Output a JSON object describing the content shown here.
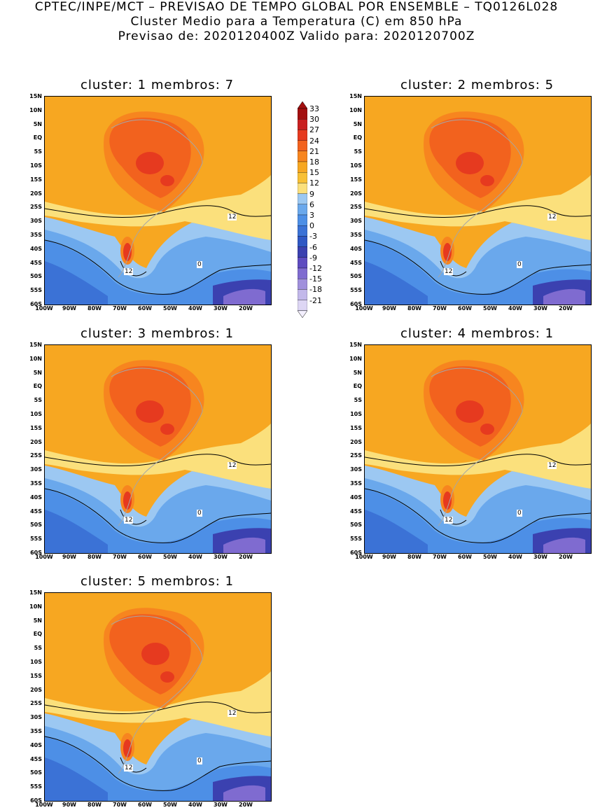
{
  "header": {
    "line1": "CPTEC/INPE/MCT – PREVISAO DE TEMPO GLOBAL POR ENSEMBLE – TQ0126L028",
    "line2": "Cluster Medio para a Temperatura (C) em 850 hPa",
    "line3": "Previsao de: 2020120400Z    Valido para: 2020120700Z"
  },
  "panels": [
    {
      "title": "cluster: 1   membros: 7",
      "label12": "12",
      "label0": "0",
      "label12b": "12"
    },
    {
      "title": "cluster: 2   membros: 5",
      "label12": "12",
      "label0": "0",
      "label12b": "12"
    },
    {
      "title": "cluster: 3   membros: 1",
      "label12": "12",
      "label0": "0",
      "label12b": "12"
    },
    {
      "title": "cluster: 4   membros: 1",
      "label12": "12",
      "label0": "0",
      "label12b": "12"
    },
    {
      "title": "cluster: 5   membros: 1",
      "label12": "12",
      "label0": "0",
      "label12b": "12"
    }
  ],
  "lat_labels": [
    "15N",
    "10N",
    "5N",
    "EQ",
    "5S",
    "10S",
    "15S",
    "20S",
    "25S",
    "30S",
    "35S",
    "40S",
    "45S",
    "50S",
    "55S",
    "60S"
  ],
  "lon_labels": [
    "100W",
    "90W",
    "80W",
    "70W",
    "60W",
    "50W",
    "40W",
    "30W",
    "20W"
  ],
  "colorbar": {
    "labels": [
      "33",
      "30",
      "27",
      "24",
      "21",
      "18",
      "15",
      "12",
      "9",
      "6",
      "3",
      "0",
      "-3",
      "-6",
      "-9",
      "-12",
      "-15",
      "-18",
      "-21"
    ],
    "colors": [
      "#a30f0f",
      "#c92020",
      "#e63a1f",
      "#f2621e",
      "#f7851f",
      "#f7a721",
      "#f8c035",
      "#fbe07c",
      "#9cc8f2",
      "#6aa8ec",
      "#4d8fe6",
      "#3b72d6",
      "#2f58c4",
      "#3b41b0",
      "#5e4cc0",
      "#7f6bd0",
      "#a090dc",
      "#c2b8ea",
      "#ddd6f4"
    ]
  }
}
